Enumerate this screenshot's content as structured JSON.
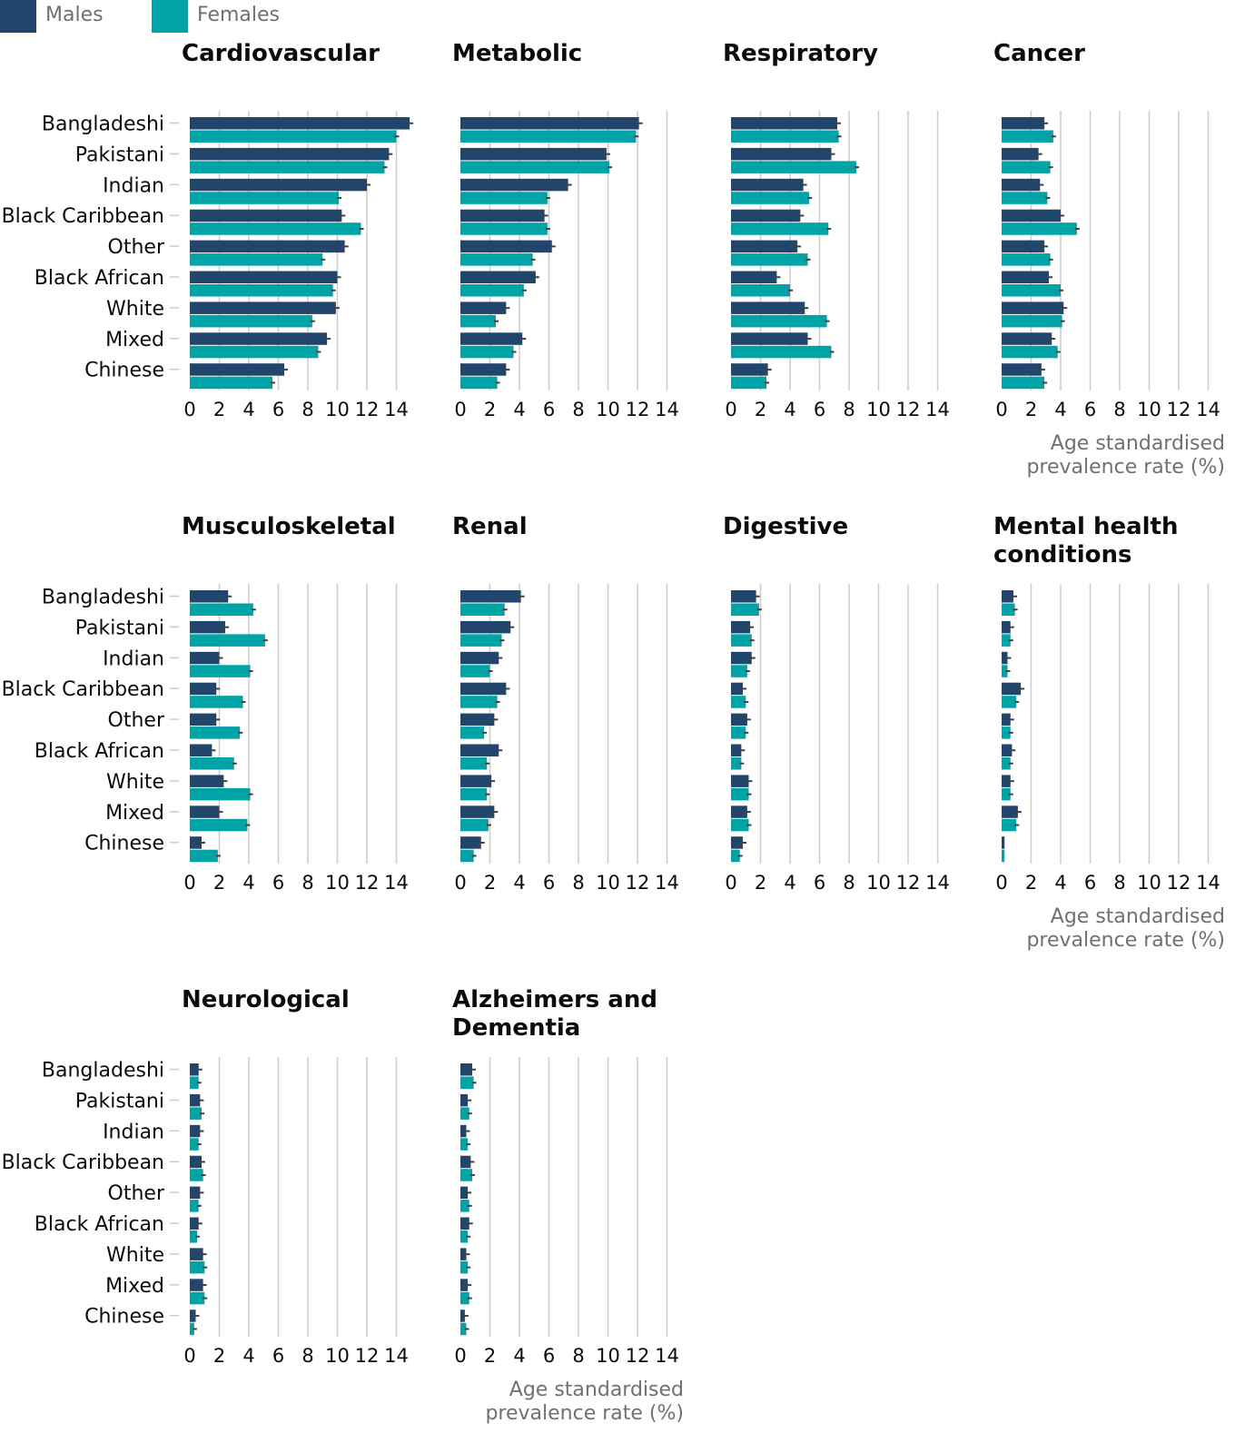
{
  "legend": {
    "males_label": "Males",
    "females_label": "Females"
  },
  "colors": {
    "males": "#206095",
    "females": "#00a3a6",
    "males_display": "#22466b",
    "grid": "#cccccc",
    "error_bar": "#414042"
  },
  "chart_data": {
    "type": "bar",
    "orientation": "horizontal",
    "categories": [
      "Bangladeshi",
      "Pakistani",
      "Indian",
      "Black Caribbean",
      "Other",
      "Black African",
      "White",
      "Mixed",
      "Chinese"
    ],
    "xlim": [
      0,
      15
    ],
    "xticks": [
      0,
      2,
      4,
      6,
      8,
      10,
      12,
      14
    ],
    "x_axis_label": "Age standardised prevalence rate (%)",
    "grid": true,
    "legend_position": "top-left",
    "panels": [
      {
        "title": "Cardiovascular",
        "males": [
          14.9,
          13.5,
          12.0,
          10.3,
          10.5,
          10.0,
          9.9,
          9.3,
          6.4
        ],
        "females": [
          14.0,
          13.2,
          10.1,
          11.6,
          9.0,
          9.7,
          8.3,
          8.7,
          5.6
        ]
      },
      {
        "title": "Metabolic",
        "males": [
          12.1,
          9.9,
          7.3,
          5.7,
          6.2,
          5.1,
          3.1,
          4.2,
          3.1
        ],
        "females": [
          11.9,
          10.1,
          5.9,
          5.9,
          4.9,
          4.3,
          2.4,
          3.6,
          2.5
        ]
      },
      {
        "title": "Respiratory",
        "males": [
          7.2,
          6.8,
          4.9,
          4.7,
          4.5,
          3.1,
          5.0,
          5.2,
          2.5
        ],
        "females": [
          7.3,
          8.5,
          5.3,
          6.6,
          5.2,
          4.0,
          6.5,
          6.8,
          2.4
        ]
      },
      {
        "title": "Cancer",
        "males": [
          2.9,
          2.5,
          2.6,
          4.0,
          2.9,
          3.2,
          4.2,
          3.4,
          2.7
        ],
        "females": [
          3.5,
          3.3,
          3.1,
          5.1,
          3.3,
          4.0,
          4.1,
          3.8,
          2.9
        ]
      },
      {
        "title": "Musculoskeletal",
        "males": [
          2.6,
          2.4,
          2.0,
          1.8,
          1.8,
          1.5,
          2.3,
          2.0,
          0.8
        ],
        "females": [
          4.3,
          5.1,
          4.1,
          3.6,
          3.4,
          3.0,
          4.1,
          3.9,
          1.9
        ]
      },
      {
        "title": "Renal",
        "males": [
          4.1,
          3.4,
          2.6,
          3.1,
          2.3,
          2.6,
          2.1,
          2.3,
          1.4
        ],
        "females": [
          3.0,
          2.8,
          2.0,
          2.5,
          1.6,
          1.8,
          1.8,
          1.9,
          0.9
        ]
      },
      {
        "title": "Digestive",
        "males": [
          1.7,
          1.3,
          1.4,
          0.8,
          1.1,
          0.7,
          1.2,
          1.1,
          0.8
        ],
        "females": [
          1.9,
          1.4,
          1.1,
          1.0,
          1.0,
          0.7,
          1.2,
          1.2,
          0.6
        ]
      },
      {
        "title": "Mental health conditions",
        "title_lines": [
          "Mental health",
          "conditions"
        ],
        "males": [
          0.8,
          0.6,
          0.4,
          1.3,
          0.6,
          0.7,
          0.6,
          1.1,
          0.2
        ],
        "females": [
          0.9,
          0.6,
          0.4,
          1.0,
          0.6,
          0.6,
          0.6,
          1.0,
          0.2
        ]
      },
      {
        "title": "Neurological",
        "males": [
          0.6,
          0.7,
          0.7,
          0.8,
          0.7,
          0.6,
          0.9,
          0.9,
          0.4
        ],
        "females": [
          0.6,
          0.8,
          0.6,
          0.9,
          0.6,
          0.5,
          1.0,
          1.0,
          0.3
        ]
      },
      {
        "title": "Alzheimers and Dementia",
        "title_lines": [
          "Alzheimers and",
          "Dementia"
        ],
        "males": [
          0.8,
          0.5,
          0.4,
          0.7,
          0.5,
          0.6,
          0.4,
          0.5,
          0.3
        ],
        "females": [
          0.9,
          0.6,
          0.5,
          0.8,
          0.6,
          0.5,
          0.5,
          0.6,
          0.4
        ]
      }
    ]
  }
}
